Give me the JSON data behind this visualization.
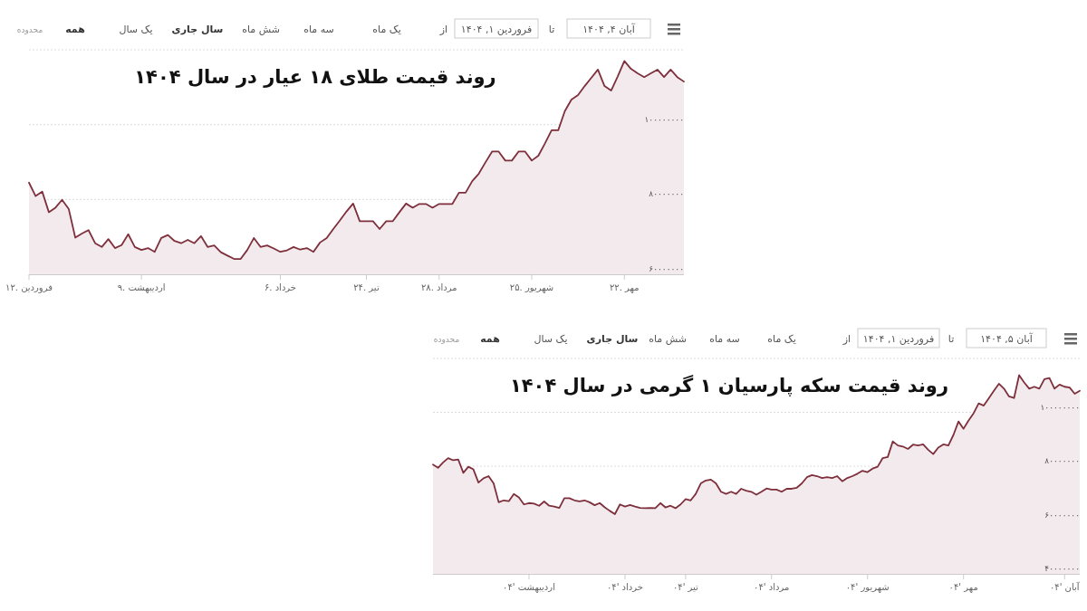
{
  "chart_data": [
    {
      "type": "area",
      "title": "روند قیمت طلای ۱۸ عیار در سال ۱۴۰۴",
      "annotations": [
        "محدوده",
        "همه",
        "یک سال",
        "سال جاری",
        "شش ماه",
        "سه ماه",
        "یک ماه",
        "از",
        "فروردین ۱, ۱۴۰۴",
        "تا",
        "آبان ۴, ۱۴۰۴"
      ],
      "categories": [
        "فروردین .۱۲",
        null,
        null,
        null,
        null,
        null,
        null,
        null,
        null,
        null,
        null,
        null,
        null,
        null,
        null,
        null,
        null,
        "اردیبهشت .۹",
        null,
        null,
        null,
        null,
        null,
        null,
        null,
        null,
        null,
        null,
        null,
        null,
        null,
        null,
        null,
        null,
        null,
        null,
        null,
        null,
        "خرداد .۶",
        null,
        null,
        null,
        null,
        null,
        null,
        null,
        null,
        null,
        null,
        null,
        null,
        "تیر .۲۴",
        null,
        null,
        null,
        null,
        null,
        null,
        null,
        null,
        null,
        null,
        "مرداد .۲۸",
        null,
        null,
        null,
        null,
        null,
        null,
        null,
        null,
        null,
        null,
        null,
        null,
        null,
        "شهریور .۲۵",
        null,
        null,
        null,
        null,
        null,
        null,
        null,
        null,
        null,
        null,
        null,
        null,
        null,
        "مهر .۲۲",
        null,
        null,
        null,
        null,
        null,
        null,
        null,
        null,
        null
      ],
      "series": [
        {
          "color": "#7e2f3c",
          "values": [
            84500000,
            80900000,
            82100000,
            76600000,
            77800000,
            79900000,
            77500000,
            69800000,
            70900000,
            71800000,
            68300000,
            67300000,
            69400000,
            67000000,
            67800000,
            70700000,
            67300000,
            66500000,
            67000000,
            66000000,
            69700000,
            70500000,
            68900000,
            68300000,
            69200000,
            68300000,
            70200000,
            67300000,
            67700000,
            65900000,
            65000000,
            64100000,
            64100000,
            66500000,
            69700000,
            67300000,
            67700000,
            66900000,
            66000000,
            66400000,
            67300000,
            66600000,
            67000000,
            66000000,
            68500000,
            69700000,
            72100000,
            74400000,
            76800000,
            78900000,
            74200000,
            74200000,
            74200000,
            72100000,
            74200000,
            74200000,
            76600000,
            78900000,
            77800000,
            78800000,
            78800000,
            77800000,
            78800000,
            78800000,
            78800000,
            81800000,
            81800000,
            84900000,
            86900000,
            89900000,
            92800000,
            92800000,
            90400000,
            90400000,
            92800000,
            92800000,
            90400000,
            91700000,
            95000000,
            98500000,
            98500000,
            103600000,
            106700000,
            107900000,
            110300000,
            112500000,
            114700000,
            110300000,
            109100000,
            112900000,
            117000000,
            114900000,
            113700000,
            112700000,
            113700000,
            114700000,
            112700000,
            114700000,
            112700000,
            111500000
          ]
        }
      ],
      "ylim": [
        60000000,
        120000000
      ],
      "yticks": [
        {
          "value": 60000000,
          "label": "۶۰۰۰۰۰۰۰"
        },
        {
          "value": 80000000,
          "label": "۸۰۰۰۰۰۰۰"
        },
        {
          "value": 100000000,
          "label": "۱۰۰۰۰۰۰۰۰"
        },
        {
          "value": 120000000,
          "label": null
        }
      ],
      "grid": "y"
    },
    {
      "type": "area",
      "title": "روند قیمت سکه پارسیان ۱ گرمی در سال ۱۴۰۴",
      "annotations": [
        "محدوده",
        "همه",
        "یک سال",
        "سال جاری",
        "شش ماه",
        "سه ماه",
        "یک ماه",
        "از",
        "فروردین ۱, ۱۴۰۴",
        "تا",
        "آبان ۵, ۱۴۰۴"
      ],
      "categories": [
        null,
        null,
        null,
        null,
        null,
        null,
        null,
        null,
        null,
        null,
        null,
        null,
        null,
        null,
        null,
        null,
        null,
        null,
        null,
        "اردیبهشت '۰۴",
        null,
        null,
        null,
        null,
        null,
        null,
        null,
        null,
        null,
        null,
        null,
        null,
        null,
        null,
        null,
        null,
        null,
        null,
        "خرداد '۰۴",
        null,
        null,
        null,
        null,
        null,
        null,
        null,
        null,
        null,
        null,
        null,
        "تیر '۰۴",
        null,
        null,
        null,
        null,
        null,
        null,
        null,
        null,
        null,
        null,
        null,
        null,
        null,
        null,
        null,
        null,
        "مرداد '۰۴",
        null,
        null,
        null,
        null,
        null,
        null,
        null,
        null,
        null,
        null,
        null,
        null,
        null,
        null,
        null,
        null,
        null,
        null,
        "شهریور '۰۴",
        null,
        null,
        null,
        null,
        null,
        null,
        null,
        null,
        null,
        null,
        null,
        null,
        null,
        null,
        null,
        null,
        null,
        null,
        "مهر '۰۴",
        null,
        null,
        null,
        null,
        null,
        null,
        null,
        null,
        null,
        null,
        null,
        null,
        null,
        null,
        null,
        null,
        null,
        null,
        null,
        "آبان '۰۴",
        null,
        null,
        null
      ],
      "series": [
        {
          "color": "#7e2f3c",
          "values": [
            80600000,
            79400000,
            81400000,
            83000000,
            82200000,
            82500000,
            77500000,
            79800000,
            78800000,
            73900000,
            75500000,
            76300000,
            73600000,
            66600000,
            67300000,
            67000000,
            69700000,
            68400000,
            65800000,
            66300000,
            66100000,
            65300000,
            66900000,
            65300000,
            65000000,
            64500000,
            68100000,
            68100000,
            67300000,
            66900000,
            67300000,
            66600000,
            65500000,
            66300000,
            64700000,
            63400000,
            62200000,
            65800000,
            65000000,
            65600000,
            65000000,
            64500000,
            64400000,
            64500000,
            64400000,
            66300000,
            64700000,
            65300000,
            64400000,
            65800000,
            67800000,
            67300000,
            69700000,
            73600000,
            74700000,
            75000000,
            73600000,
            70500000,
            69700000,
            70500000,
            69700000,
            71600000,
            70900000,
            70500000,
            69400000,
            70500000,
            71700000,
            71300000,
            71300000,
            70500000,
            71600000,
            71600000,
            72000000,
            73600000,
            75900000,
            76700000,
            76300000,
            75600000,
            75900000,
            75600000,
            76300000,
            74400000,
            75600000,
            76300000,
            77200000,
            78300000,
            77800000,
            79100000,
            79800000,
            83000000,
            83400000,
            89200000,
            87700000,
            87300000,
            86400000,
            88000000,
            87700000,
            88100000,
            86100000,
            84500000,
            86900000,
            88100000,
            87700000,
            91600000,
            96600000,
            93900000,
            97000000,
            99700000,
            103300000,
            102500000,
            105200000,
            108000000,
            110600000,
            108800000,
            105900000,
            105300000,
            113800000,
            111100000,
            108800000,
            109500000,
            108800000,
            112300000,
            112700000,
            108800000,
            110300000,
            109500000,
            109200000,
            106900000,
            108000000
          ]
        }
      ],
      "ylim": [
        40000000,
        120000000
      ],
      "yticks": [
        {
          "value": 40000000,
          "label": "۴۰۰۰۰۰۰۰"
        },
        {
          "value": 60000000,
          "label": "۶۰۰۰۰۰۰۰"
        },
        {
          "value": 80000000,
          "label": "۸۰۰۰۰۰۰۰"
        },
        {
          "value": 100000000,
          "label": "۱۰۰۰۰۰۰۰۰"
        },
        {
          "value": 120000000,
          "label": null
        }
      ],
      "grid": "y"
    }
  ]
}
